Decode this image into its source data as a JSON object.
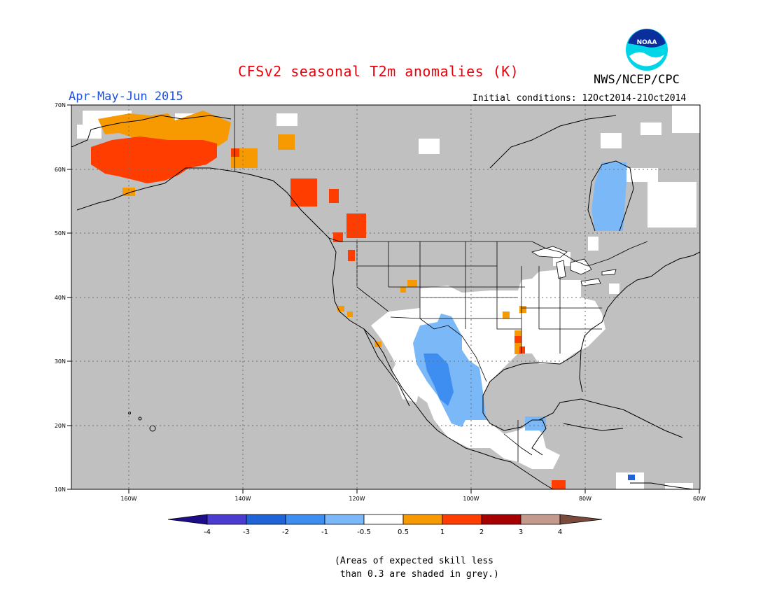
{
  "header": {
    "title": "CFSv2 seasonal T2m anomalies (K)",
    "org": "NWS/NCEP/CPC",
    "period": "Apr-May-Jun 2015",
    "initial_conditions": "Initial conditions: 12Oct2014-21Oct2014",
    "logo_text": "NOAA"
  },
  "map": {
    "lon_range": [
      -170,
      -60
    ],
    "lat_range": [
      10,
      70
    ],
    "lon_ticks": [
      "160W",
      "140W",
      "120W",
      "100W",
      "80W",
      "60W"
    ],
    "lat_ticks": [
      "10N",
      "20N",
      "30N",
      "40N",
      "50N",
      "60N",
      "70N"
    ],
    "colors": {
      "land": "#c0c0c0",
      "no_skill": "#c0c0c0",
      "near_normal": "#ffffff",
      "grid": "#6e6e6e"
    }
  },
  "colorbar": {
    "labels": [
      "-4",
      "-3",
      "-2",
      "-1",
      "-0.5",
      "0.5",
      "1",
      "2",
      "3",
      "4"
    ],
    "colors": [
      "#1e0d8a",
      "#4b3ccf",
      "#1f63d6",
      "#3d8ef0",
      "#7bb8f7",
      "#ffffff",
      "#f79a02",
      "#ff3d00",
      "#a60000",
      "#c49a8c",
      "#7a4a3d"
    ]
  },
  "note": "(Areas of expected skill less\n than 0.3 are shaded in grey.)"
}
